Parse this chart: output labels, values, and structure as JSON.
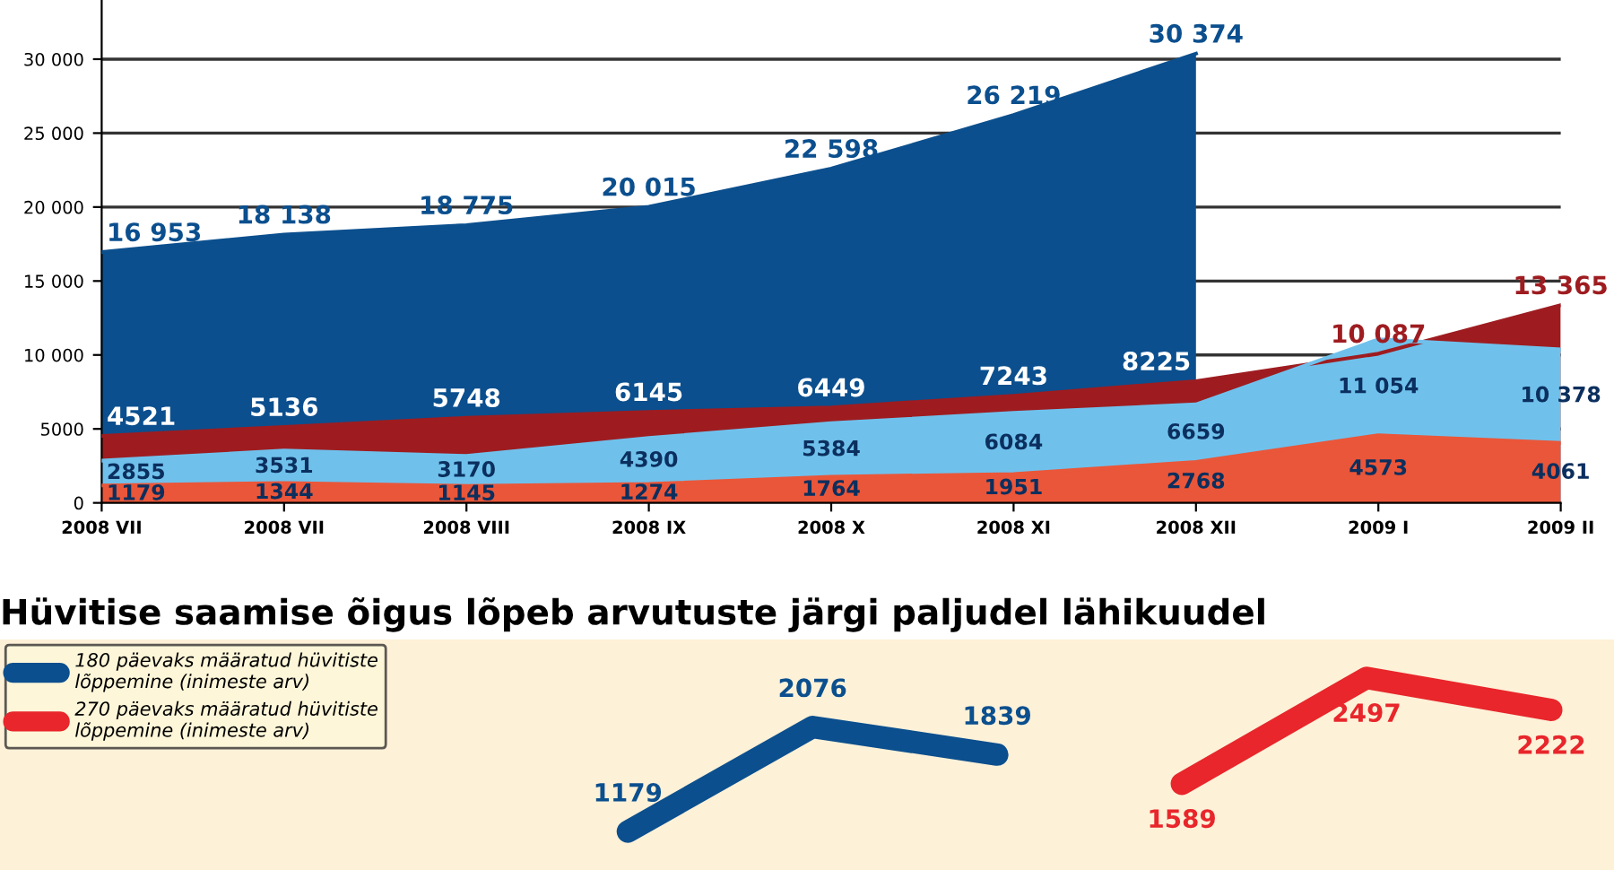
{
  "chart_data": [
    {
      "type": "area",
      "categories": [
        "2008 VII",
        "2008 VII",
        "2008 VIII",
        "2008 IX",
        "2008 X",
        "2008 XI",
        "2008 XII",
        "2009 I",
        "2009 II"
      ],
      "series": [
        {
          "color": "#0b4f8e",
          "values": [
            16953,
            18138,
            18775,
            20015,
            22598,
            26219,
            30374,
            null,
            null
          ],
          "value_labels": [
            "16 953",
            "18 138",
            "18 775",
            "20 015",
            "22 598",
            "26 219",
            "30 374",
            null,
            null
          ]
        },
        {
          "color": "#9e1c20",
          "values": [
            4521,
            5136,
            5748,
            6145,
            6449,
            7243,
            8225,
            10087,
            13365
          ],
          "value_labels": [
            "4521",
            "5136",
            "5748",
            "6145",
            "6449",
            "7243",
            "8225",
            "10 087",
            "13 365"
          ]
        },
        {
          "color": "#6fc1ec",
          "values": [
            2855,
            3531,
            3170,
            4390,
            5384,
            6084,
            6659,
            11054,
            10378
          ],
          "value_labels": [
            "2855",
            "3531",
            "3170",
            "4390",
            "5384",
            "6084",
            "6659",
            "11 054",
            "10 378"
          ]
        },
        {
          "color": "#ea5639",
          "values": [
            1179,
            1344,
            1145,
            1274,
            1764,
            1951,
            2768,
            4573,
            4061
          ],
          "value_labels": [
            "1179",
            "1344",
            "1145",
            "1274",
            "1764",
            "1951",
            "2768",
            "4573",
            "4061"
          ]
        }
      ],
      "ylim": [
        0,
        34000
      ],
      "yticks": [
        0,
        5000,
        {
          "value": 10000,
          "label": "10 000"
        },
        {
          "value": 15000,
          "label": "15 000"
        },
        {
          "value": 20000,
          "label": "20 000"
        },
        {
          "value": 25000,
          "label": "25 000"
        },
        {
          "value": 30000,
          "label": "30 000"
        }
      ],
      "grid": "y"
    },
    {
      "type": "line",
      "title": "Hüvitise saamise õigus lõpeb arvutuste järgi paljudel lähikuudel",
      "categories": [
        null,
        null,
        null,
        null,
        null,
        null
      ],
      "series": [
        {
          "name": "180 päevaks määratud hüvitiste\nlõppemine (inimeste arv)",
          "color": "#0b4f8e",
          "values": [
            1179,
            2076,
            1839,
            null,
            null,
            null
          ]
        },
        {
          "name": "270 päevaks määratud hüvitiste\nlõppemine (inimeste arv)",
          "color": "#e8262b",
          "values": [
            null,
            null,
            null,
            1589,
            2497,
            2222
          ]
        }
      ],
      "data_labels": true,
      "legend": "top left",
      "line_style": "solid"
    }
  ]
}
